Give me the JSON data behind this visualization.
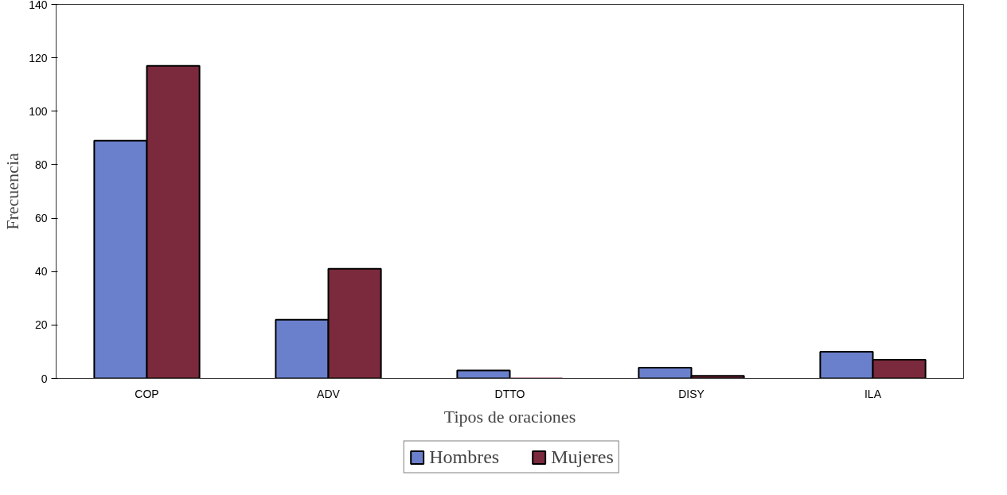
{
  "chart_data": {
    "type": "bar",
    "xlabel": "Tipos de oraciones",
    "ylabel": "Frecuencia",
    "categories": [
      "COP",
      "ADV",
      "DTTO",
      "DISY",
      "ILA"
    ],
    "series": [
      {
        "name": "Hombres",
        "color": "#6a80cc",
        "values": [
          89,
          22,
          3,
          4,
          10
        ]
      },
      {
        "name": "Mujeres",
        "color": "#7a2a3c",
        "values": [
          117,
          41,
          0,
          1,
          7
        ]
      }
    ],
    "ylim": [
      0,
      140
    ],
    "yticks": [
      0,
      20,
      40,
      60,
      80,
      100,
      120,
      140
    ],
    "grid": false,
    "legend": "bottom"
  }
}
